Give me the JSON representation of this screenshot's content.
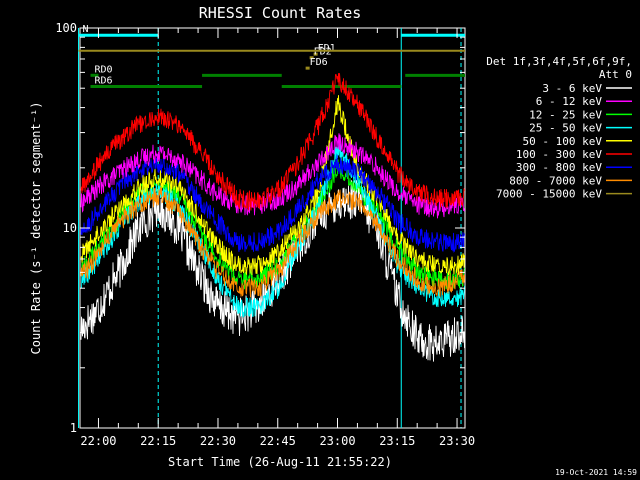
{
  "chart_data": {
    "type": "line",
    "title": "RHESSI Count Rates",
    "xlabel": "Start Time (26-Aug-11 21:55:22)",
    "ylabel": "Count Rate (s⁻¹ detector segment⁻¹)",
    "y_scale": "log",
    "ylim": [
      1,
      100
    ],
    "xlim": [
      "21:55:22",
      "23:32:00"
    ],
    "x_ticks": [
      "22:00",
      "22:15",
      "22:30",
      "22:45",
      "23:00",
      "23:15",
      "23:30"
    ],
    "y_ticks": [
      "1",
      "10",
      "100"
    ],
    "grid": false,
    "legend": {
      "position": "right",
      "header": [
        "Det 1f,3f,4f,5f,6f,9f,",
        "Att 0"
      ]
    },
    "series": [
      {
        "name": "3 - 6 keV",
        "color": "#ffffff",
        "x": [
          "21:55",
          "22:00",
          "22:05",
          "22:10",
          "22:15",
          "22:20",
          "22:25",
          "22:30",
          "22:35",
          "22:40",
          "22:45",
          "22:50",
          "22:55",
          "23:00",
          "23:05",
          "23:10",
          "23:15",
          "23:20",
          "23:25",
          "23:30",
          "23:32"
        ],
        "y": [
          3.0,
          4.0,
          6.0,
          10.0,
          13.0,
          10.0,
          6.0,
          4.0,
          3.6,
          4.0,
          5.5,
          8.0,
          11.5,
          13.5,
          14.0,
          10.0,
          4.5,
          2.8,
          2.6,
          3.0,
          3.0
        ]
      },
      {
        "name": "6 - 12 keV",
        "color": "#ff00ff",
        "x": [
          "21:55",
          "22:00",
          "22:05",
          "22:10",
          "22:15",
          "22:20",
          "22:25",
          "22:30",
          "22:35",
          "22:40",
          "22:45",
          "22:50",
          "22:55",
          "23:00",
          "23:05",
          "23:10",
          "23:15",
          "23:20",
          "23:25",
          "23:30",
          "23:32"
        ],
        "y": [
          13.0,
          16.0,
          19.0,
          22.0,
          24.0,
          22.0,
          18.0,
          14.5,
          13.0,
          13.0,
          14.0,
          16.5,
          21.0,
          27.0,
          24.0,
          20.0,
          15.0,
          13.0,
          12.5,
          13.0,
          13.5
        ]
      },
      {
        "name": "12 - 25 keV",
        "color": "#00ff00",
        "x": [
          "21:55",
          "22:00",
          "22:05",
          "22:10",
          "22:15",
          "22:20",
          "22:25",
          "22:30",
          "22:35",
          "22:40",
          "22:45",
          "22:50",
          "22:55",
          "23:00",
          "23:05",
          "23:10",
          "23:15",
          "23:20",
          "23:25",
          "23:30",
          "23:32"
        ],
        "y": [
          6.0,
          8.0,
          11.0,
          14.5,
          16.5,
          14.5,
          10.0,
          7.0,
          5.5,
          5.5,
          6.5,
          9.0,
          13.0,
          20.0,
          16.0,
          12.0,
          8.0,
          6.0,
          5.5,
          5.5,
          5.7
        ]
      },
      {
        "name": "25 - 50 keV",
        "color": "#00ffff",
        "x": [
          "21:55",
          "22:00",
          "22:05",
          "22:10",
          "22:15",
          "22:20",
          "22:25",
          "22:30",
          "22:35",
          "22:40",
          "22:45",
          "22:50",
          "22:55",
          "23:00",
          "23:05",
          "23:10",
          "23:15",
          "23:20",
          "23:25",
          "23:30",
          "23:32"
        ],
        "y": [
          5.0,
          7.0,
          10.0,
          13.5,
          15.5,
          13.0,
          8.5,
          5.5,
          4.0,
          4.0,
          5.0,
          8.0,
          12.5,
          25.0,
          17.0,
          11.0,
          6.5,
          5.0,
          4.5,
          4.5,
          4.7
        ]
      },
      {
        "name": "50 - 100 keV",
        "color": "#ffff00",
        "x": [
          "21:55",
          "22:00",
          "22:05",
          "22:10",
          "22:15",
          "22:20",
          "22:25",
          "22:30",
          "22:35",
          "22:40",
          "22:45",
          "22:50",
          "22:55",
          "23:00",
          "23:05",
          "23:10",
          "23:15",
          "23:20",
          "23:25",
          "23:30",
          "23:32"
        ],
        "y": [
          7.0,
          9.5,
          12.5,
          16.0,
          18.0,
          16.0,
          11.5,
          8.0,
          6.5,
          6.5,
          7.5,
          10.0,
          14.5,
          42.0,
          20.0,
          13.5,
          9.0,
          7.0,
          6.5,
          6.5,
          6.8
        ]
      },
      {
        "name": "100 - 300 keV",
        "color": "#ff0000",
        "x": [
          "21:55",
          "22:00",
          "22:05",
          "22:10",
          "22:15",
          "22:20",
          "22:25",
          "22:30",
          "22:35",
          "22:40",
          "22:45",
          "22:50",
          "22:55",
          "23:00",
          "23:05",
          "23:10",
          "23:15",
          "23:20",
          "23:25",
          "23:30",
          "23:32"
        ],
        "y": [
          15.0,
          21.0,
          27.0,
          33.0,
          36.0,
          33.0,
          25.0,
          18.0,
          14.0,
          13.5,
          15.5,
          21.0,
          32.0,
          56.0,
          42.0,
          28.0,
          19.0,
          15.0,
          14.0,
          14.0,
          14.5
        ]
      },
      {
        "name": "300 - 800 keV",
        "color": "#0000ff",
        "x": [
          "21:55",
          "22:00",
          "22:05",
          "22:10",
          "22:15",
          "22:20",
          "22:25",
          "22:30",
          "22:35",
          "22:40",
          "22:45",
          "22:50",
          "22:55",
          "23:00",
          "23:05",
          "23:10",
          "23:15",
          "23:20",
          "23:25",
          "23:30",
          "23:32"
        ],
        "y": [
          9.0,
          12.0,
          16.0,
          19.5,
          21.0,
          19.0,
          14.0,
          10.5,
          8.5,
          8.5,
          9.5,
          12.5,
          17.0,
          21.0,
          19.0,
          15.0,
          11.0,
          9.0,
          8.5,
          8.5,
          9.0
        ]
      },
      {
        "name": "800 - 7000 keV",
        "color": "#ff8c00",
        "x": [
          "21:55",
          "22:00",
          "22:05",
          "22:10",
          "22:15",
          "22:20",
          "22:25",
          "22:30",
          "22:35",
          "22:40",
          "22:45",
          "22:50",
          "22:55",
          "23:00",
          "23:05",
          "23:10",
          "23:15",
          "23:20",
          "23:25",
          "23:30",
          "23:32"
        ],
        "y": [
          5.5,
          7.5,
          10.5,
          13.0,
          14.5,
          12.5,
          8.5,
          6.0,
          5.0,
          5.0,
          6.0,
          8.5,
          11.5,
          14.0,
          13.5,
          10.5,
          7.0,
          5.5,
          5.0,
          5.5,
          5.7
        ]
      },
      {
        "name": "7000 - 15000 keV",
        "color": "#9a8a1e",
        "x": [
          "21:55",
          "23:32"
        ],
        "y": [
          77.0,
          77.0
        ]
      }
    ],
    "annotations": [
      {
        "label": "N",
        "color": "#00ffff",
        "x_start": "21:55",
        "x_end": "22:15",
        "y": 92
      },
      {
        "label": "",
        "color": "#00ffff",
        "x_start": "23:16",
        "x_end": "23:32",
        "y": 92
      },
      {
        "label": "RD0",
        "color": "#008000",
        "x_start": "21:58",
        "x_end": "22:00",
        "y": 58
      },
      {
        "label": "",
        "color": "#008000",
        "x_start": "22:26",
        "x_end": "22:46",
        "y": 58
      },
      {
        "label": "",
        "color": "#008000",
        "x_start": "23:17",
        "x_end": "23:32",
        "y": 58
      },
      {
        "label": "RD6",
        "color": "#008000",
        "x_start": "21:58",
        "x_end": "22:26",
        "y": 51
      },
      {
        "label": "",
        "color": "#008000",
        "x_start": "22:46",
        "x_end": "23:16",
        "y": 51
      },
      {
        "label": "FD1",
        "color": "#9a8a1e",
        "x_start": "22:54",
        "x_end": "22:55",
        "y": 74
      },
      {
        "label": "FD2",
        "color": "#9a8a1e",
        "x_start": "22:53",
        "x_end": "22:54",
        "y": 71
      },
      {
        "label": "FD6",
        "color": "#9a8a1e",
        "x_start": "22:52",
        "x_end": "22:53",
        "y": 63
      }
    ],
    "vertical_lines": [
      {
        "x": "21:55",
        "color": "#00ffff",
        "style": "solid"
      },
      {
        "x": "22:15",
        "color": "#00ffff",
        "style": "dashed"
      },
      {
        "x": "23:16",
        "color": "#00ffff",
        "style": "solid"
      },
      {
        "x": "23:31",
        "color": "#00ffff",
        "style": "dashed"
      }
    ],
    "footer_timestamp": "19-Oct-2021 14:59"
  }
}
